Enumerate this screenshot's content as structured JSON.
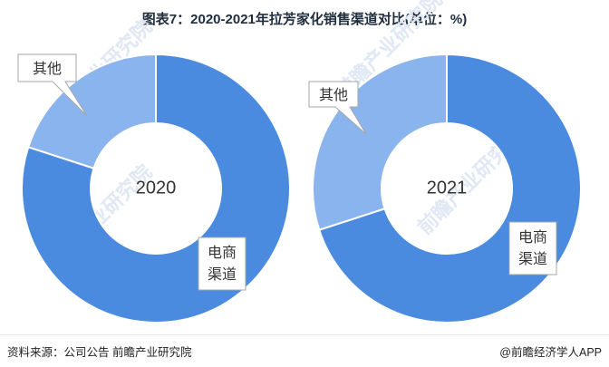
{
  "title": "图表7：2020-2021年拉芳家化销售渠道对比(单位：%)",
  "chart_data": [
    {
      "type": "pie",
      "donut": true,
      "center_label": "2020",
      "categories": [
        "电商渠道",
        "其他"
      ],
      "values": [
        80,
        20
      ],
      "colors": [
        "#4a8be0",
        "#8ab4ee"
      ]
    },
    {
      "type": "pie",
      "donut": true,
      "center_label": "2021",
      "categories": [
        "电商渠道",
        "其他"
      ],
      "values": [
        70,
        30
      ],
      "colors": [
        "#4a8be0",
        "#8ab4ee"
      ]
    }
  ],
  "labels": {
    "ecommerce": [
      "电商",
      "渠道"
    ],
    "other": "其他"
  },
  "watermark": "前瞻产业研究院",
  "footer": {
    "source": "资料来源：公司公告 前瞻产业研究院",
    "brand": "@前瞻经济学人APP"
  }
}
